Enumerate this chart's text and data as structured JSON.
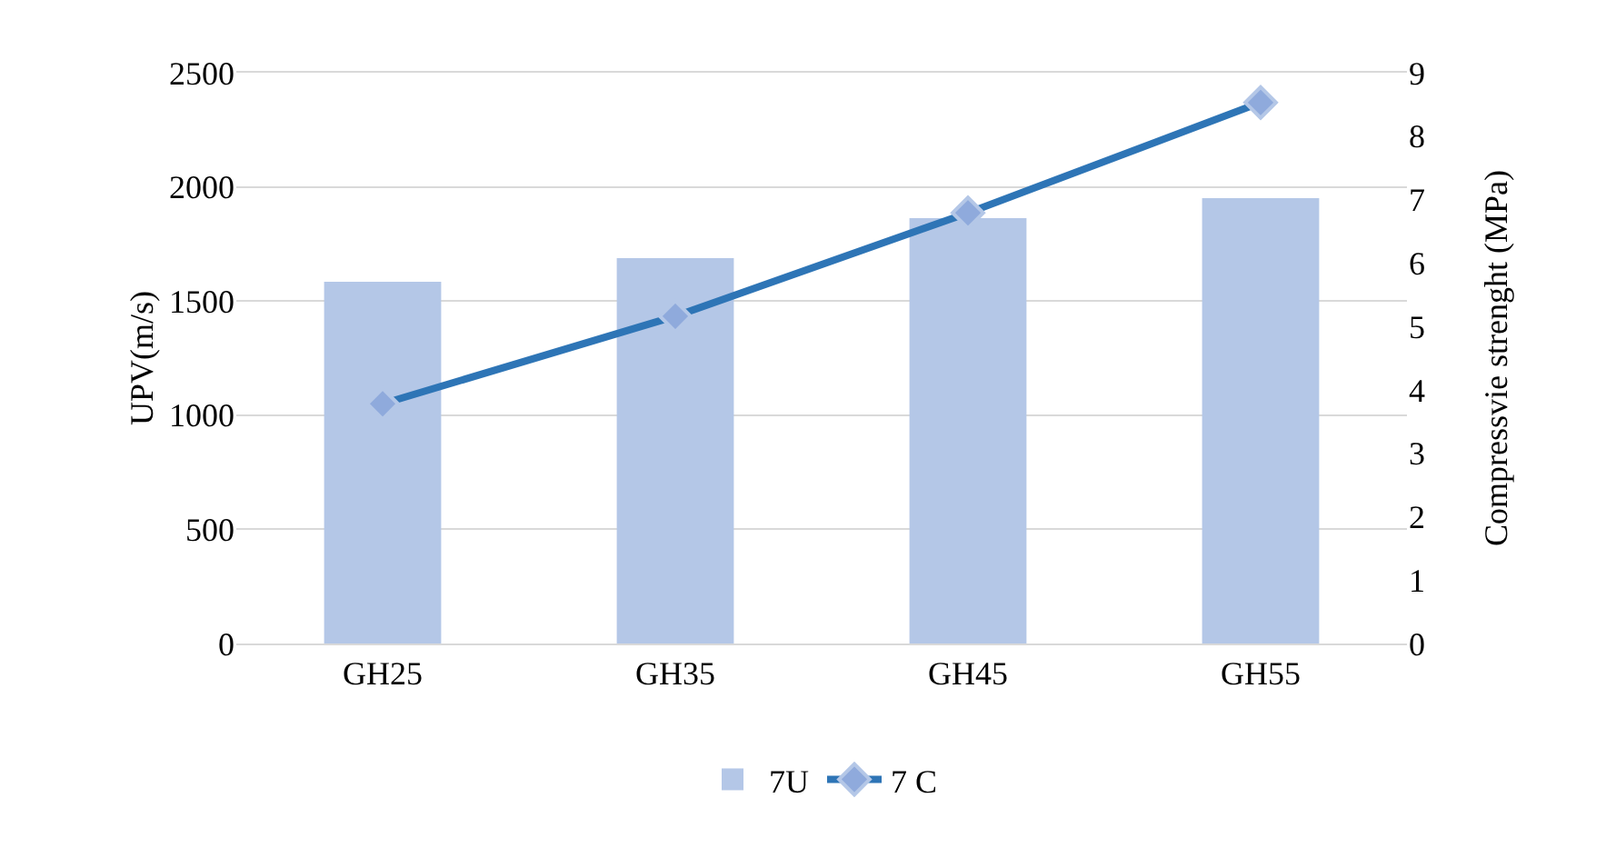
{
  "chart_data": {
    "type": "bar",
    "ylabel": "UPV(m/s)",
    "y2label": "Compressvie strenght (MPa)",
    "categories": [
      "GH25",
      "GH35",
      "GH45",
      "GH55"
    ],
    "series": [
      {
        "name": "7U",
        "color": "#b4c7e7",
        "values": [
          1584,
          1688,
          1863,
          1951
        ]
      },
      {
        "name": "7 C",
        "type": "line",
        "axis": "y2",
        "color": "#2e75b6",
        "marker": "diamond",
        "values": [
          3.78,
          5.16,
          6.79,
          8.53
        ]
      }
    ],
    "ylim": [
      0,
      2500
    ],
    "yticks": [
      0,
      500,
      1000,
      1500,
      2000,
      2500
    ],
    "y2lim": [
      0,
      9
    ],
    "y2ticks": [
      0,
      1,
      2,
      3,
      4,
      5,
      6,
      7,
      8,
      9
    ],
    "grid": "y",
    "legend": "bottom"
  }
}
